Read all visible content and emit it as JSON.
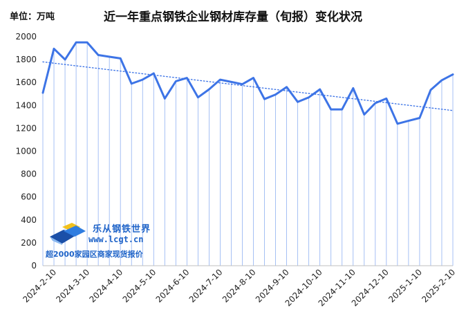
{
  "unit_label": "单位：万吨",
  "watermark": {
    "title": "乐从钢铁世界",
    "url": "www.lcgt.cn",
    "slogan": "超2000家园区商家现货报价",
    "logo_colors": [
      "#1a4fa8",
      "#f2c11c",
      "#2f7de0",
      "#8ab8f0"
    ]
  },
  "chart_data": {
    "type": "line",
    "title": "近一年重点钢铁企业钢材库存量（旬报）变化状况",
    "xlabel": "",
    "ylabel": "",
    "ylim": [
      0,
      2000
    ],
    "yticks": [
      0,
      200,
      400,
      600,
      800,
      1000,
      1200,
      1400,
      1600,
      1800,
      2000
    ],
    "x_tick_labels": [
      "2024-2-10",
      "2024-3-10",
      "2024-4-10",
      "2024-5-10",
      "2024-6-10",
      "2024-7-10",
      "2024-8-10",
      "2024-9-10",
      "2024-10-10",
      "2024-11-10",
      "2024-12-10",
      "2025-1-10",
      "2025-2-10"
    ],
    "x": [
      "2024-1-31",
      "2024-2-10",
      "2024-2-20",
      "2024-2-29",
      "2024-3-10",
      "2024-3-20",
      "2024-3-31",
      "2024-4-10",
      "2024-4-20",
      "2024-4-30",
      "2024-5-10",
      "2024-5-20",
      "2024-5-31",
      "2024-6-10",
      "2024-6-20",
      "2024-6-30",
      "2024-7-10",
      "2024-7-20",
      "2024-7-31",
      "2024-8-10",
      "2024-8-20",
      "2024-8-31",
      "2024-9-10",
      "2024-9-20",
      "2024-9-30",
      "2024-10-10",
      "2024-10-20",
      "2024-10-31",
      "2024-11-10",
      "2024-11-20",
      "2024-11-30",
      "2024-12-10",
      "2024-12-20",
      "2024-12-31",
      "2025-1-10",
      "2025-1-20",
      "2025-1-31",
      "2025-2-10"
    ],
    "series": [
      {
        "values": [
          1510,
          1895,
          1800,
          1950,
          1950,
          1840,
          1825,
          1810,
          1590,
          1625,
          1680,
          1460,
          1610,
          1640,
          1470,
          1540,
          1625,
          1605,
          1585,
          1640,
          1455,
          1495,
          1560,
          1430,
          1470,
          1540,
          1365,
          1365,
          1550,
          1320,
          1420,
          1460,
          1240,
          1265,
          1290,
          1535,
          1620,
          1670
        ],
        "color": "#3d74e6"
      }
    ],
    "trendline": {
      "from": 1780,
      "to": 1355,
      "color": "#3d74e6",
      "style": "dotted"
    },
    "drop_lines": true,
    "grid": false,
    "legend": "none"
  }
}
